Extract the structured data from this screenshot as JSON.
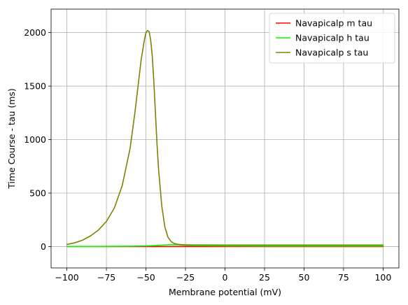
{
  "chart_data": {
    "type": "line",
    "title": "",
    "xlabel": "Membrane potential (mV)",
    "ylabel": "Time Course - tau (ms)",
    "xlim": [
      -110,
      110
    ],
    "ylim": [
      -200,
      2220
    ],
    "xticks": [
      -100,
      -75,
      -50,
      -25,
      0,
      25,
      50,
      75,
      100
    ],
    "yticks": [
      0,
      500,
      1000,
      1500,
      2000
    ],
    "grid": true,
    "legend_position": "top-right",
    "series": [
      {
        "name": "Navapicalp m tau",
        "color": "#ff0000",
        "x": [
          -100,
          -80,
          -60,
          -50,
          -45,
          -40,
          -35,
          -30,
          -25,
          -20,
          0,
          25,
          50,
          75,
          100
        ],
        "y": [
          0.05,
          0.06,
          0.1,
          0.15,
          0.18,
          0.2,
          0.18,
          0.15,
          0.12,
          0.1,
          0.06,
          0.04,
          0.03,
          0.03,
          0.03
        ]
      },
      {
        "name": "Navapicalp h tau",
        "color": "#00ff00",
        "x": [
          -100,
          -80,
          -60,
          -50,
          -45,
          -40,
          -35,
          -32,
          -30,
          -25,
          -20,
          0,
          25,
          50,
          75,
          100
        ],
        "y": [
          1,
          1.5,
          3,
          6,
          9,
          13,
          17,
          18,
          16,
          12,
          9,
          6,
          5,
          5,
          5,
          5
        ]
      },
      {
        "name": "Navapicalp s tau",
        "color": "#808000",
        "x": [
          -100,
          -95,
          -90,
          -85,
          -80,
          -75,
          -70,
          -65,
          -60,
          -57,
          -55,
          -53,
          -51,
          -50,
          -49,
          -48,
          -47,
          -46,
          -45,
          -44,
          -43,
          -42,
          -40,
          -38,
          -36,
          -34,
          -32,
          -30,
          -28,
          -25,
          -20,
          0,
          25,
          50,
          75,
          100
        ],
        "y": [
          20,
          35,
          60,
          100,
          155,
          235,
          360,
          570,
          920,
          1250,
          1500,
          1750,
          1930,
          2000,
          2020,
          2010,
          1930,
          1780,
          1540,
          1250,
          960,
          720,
          380,
          180,
          85,
          45,
          28,
          21,
          18,
          16,
          15,
          14,
          14,
          14,
          14,
          14
        ]
      }
    ]
  }
}
